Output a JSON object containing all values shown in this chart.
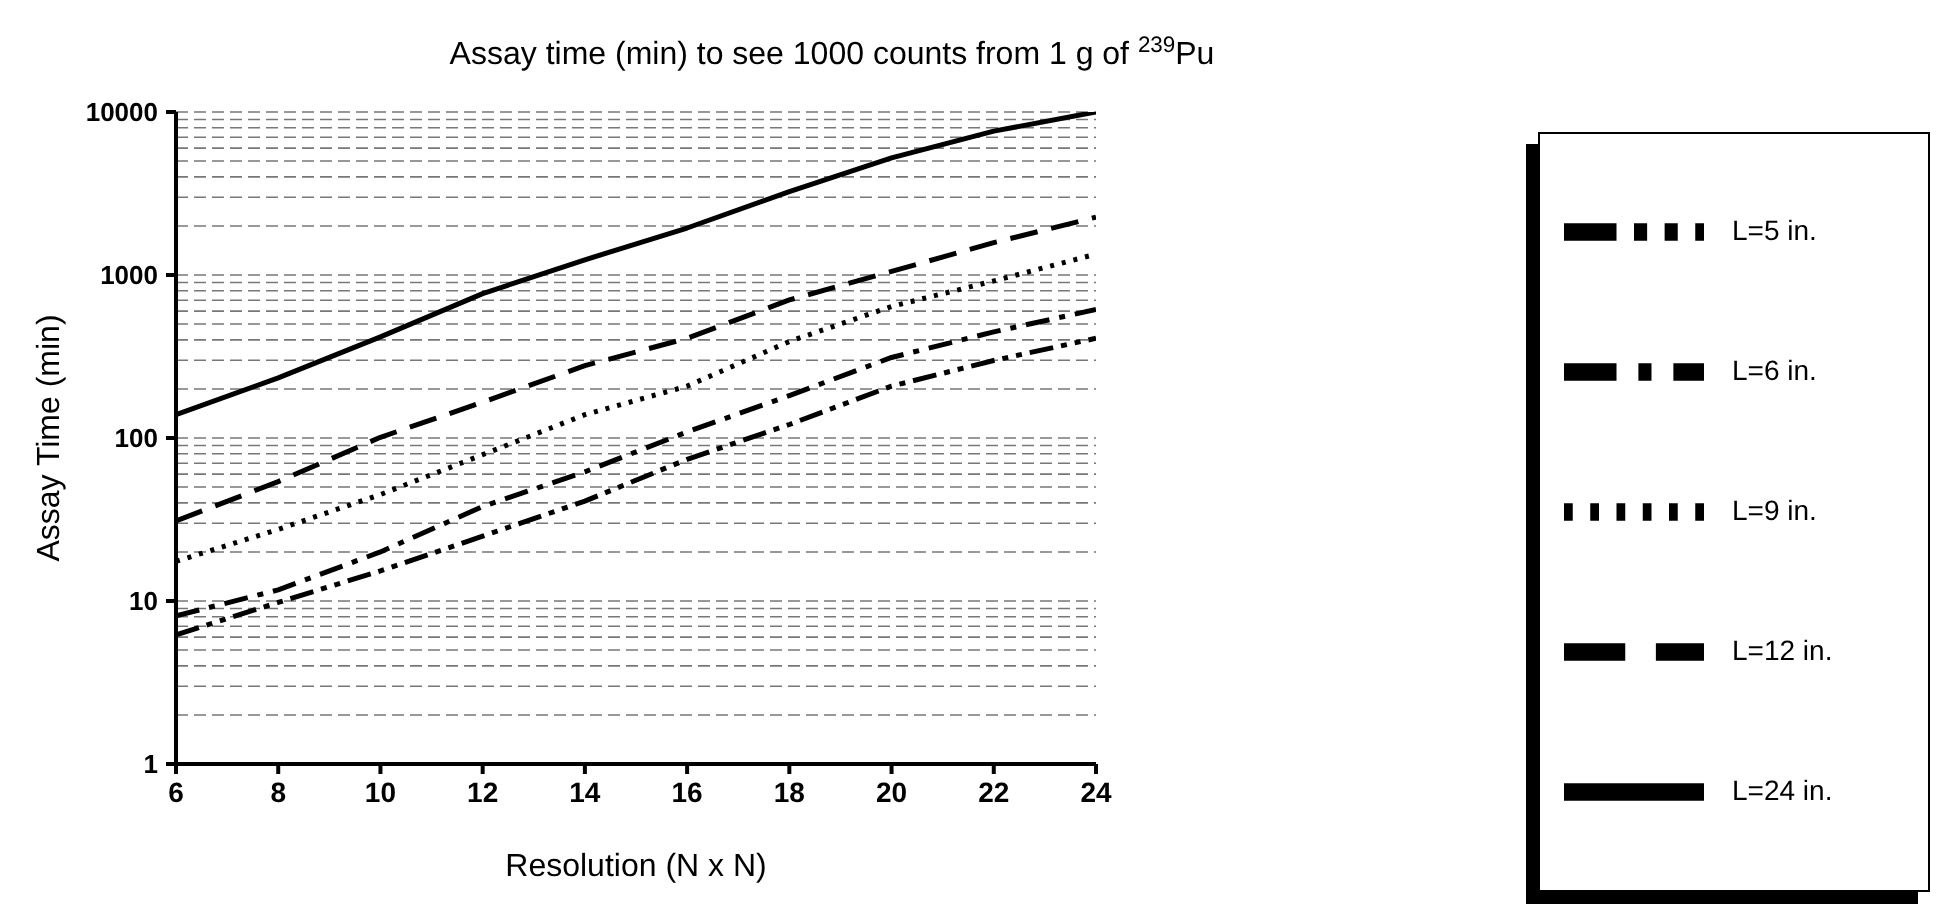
{
  "chart_data": {
    "type": "line",
    "title": "Assay time (min) to see 1000 counts from 1 g of $^{239}$Pu",
    "xlabel": "Resolution (N x N)",
    "ylabel": "Assay Time (min)",
    "x": [
      6,
      8,
      10,
      12,
      14,
      16,
      18,
      20,
      22,
      24
    ],
    "series": [
      {
        "name": "L=5 in.",
        "color": "#000000",
        "line_style": "dashdotdot",
        "values": [
          6.2,
          9.8,
          15.3,
          25,
          41,
          74,
          121,
          208,
          299,
          409
        ]
      },
      {
        "name": "L=6 in.",
        "color": "#000000",
        "line_style": "dashdot",
        "values": [
          8.1,
          11.7,
          20,
          38,
          62,
          109,
          182,
          312,
          448,
          614
        ]
      },
      {
        "name": "L=9 in.",
        "color": "#000000",
        "line_style": "dotted",
        "values": [
          17.5,
          27.5,
          45,
          79,
          139,
          208,
          391,
          641,
          920,
          1343
        ]
      },
      {
        "name": "L=12 in.",
        "color": "#000000",
        "line_style": "dashed",
        "values": [
          31,
          54,
          101,
          166,
          278,
          409,
          703,
          1052,
          1579,
          2264
        ]
      },
      {
        "name": "L=24 in.",
        "color": "#000000",
        "line_style": "solid",
        "values": [
          139,
          234,
          417,
          769,
          1240,
          1942,
          3245,
          5230,
          7630,
          10000
        ]
      }
    ],
    "xlim": [
      6,
      24
    ],
    "xticks": [
      6,
      8,
      10,
      12,
      14,
      16,
      18,
      20,
      22,
      24
    ],
    "ylim": [
      1,
      10000
    ],
    "yticks": [
      1,
      10,
      100,
      1000,
      10000
    ],
    "log": "y",
    "grid": "y",
    "legend": "right",
    "marker": "none"
  }
}
